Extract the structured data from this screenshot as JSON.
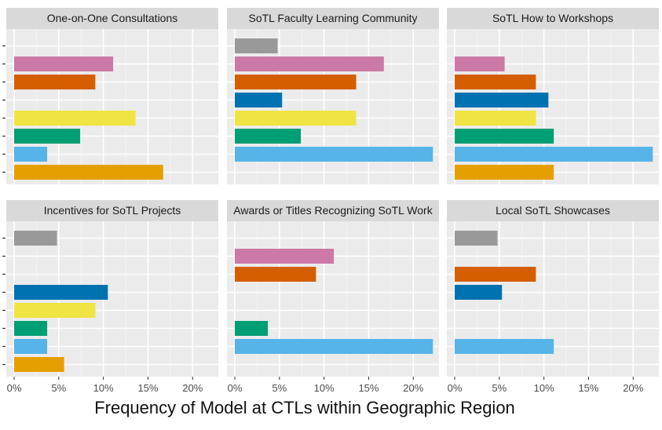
{
  "chart_data": {
    "type": "bar",
    "orientation": "horizontal",
    "xlabel": "Frequency of Model at CTLs within Geographic Region",
    "xlim": [
      0,
      0.22
    ],
    "x_ticks": [
      0,
      0.05,
      0.1,
      0.15,
      0.2
    ],
    "x_tick_labels": [
      "0%",
      "5%",
      "10%",
      "15%",
      "20%"
    ],
    "y_tick_labels_visible": false,
    "n_categories": 8,
    "grid": true,
    "legend": "none",
    "category_colors": [
      "#999999",
      "#CC79A7",
      "#D55E00",
      "#0072B2",
      "#F0E442",
      "#009E73",
      "#56B4E9",
      "#E69F00"
    ],
    "panels": [
      {
        "title": "One-on-One Consultations",
        "values": [
          null,
          0.111,
          0.091,
          null,
          0.136,
          0.074,
          0.037,
          0.167
        ]
      },
      {
        "title": "SoTL Faculty Learning Community",
        "values": [
          0.048,
          0.167,
          0.136,
          0.053,
          0.136,
          0.074,
          0.222,
          null
        ]
      },
      {
        "title": "SoTL How to Workshops",
        "values": [
          null,
          0.056,
          0.091,
          0.105,
          0.091,
          0.111,
          0.222,
          0.111
        ]
      },
      {
        "title": "Incentives for SoTL Projects",
        "values": [
          0.048,
          null,
          null,
          0.105,
          0.091,
          0.037,
          0.037,
          0.056
        ]
      },
      {
        "title": "Awards or Titles Recognizing SoTL Work",
        "values": [
          null,
          0.111,
          0.091,
          null,
          null,
          0.037,
          0.222,
          null
        ]
      },
      {
        "title": "Local SoTL Showcases",
        "values": [
          0.048,
          null,
          0.091,
          0.053,
          null,
          null,
          0.111,
          null
        ]
      }
    ]
  }
}
